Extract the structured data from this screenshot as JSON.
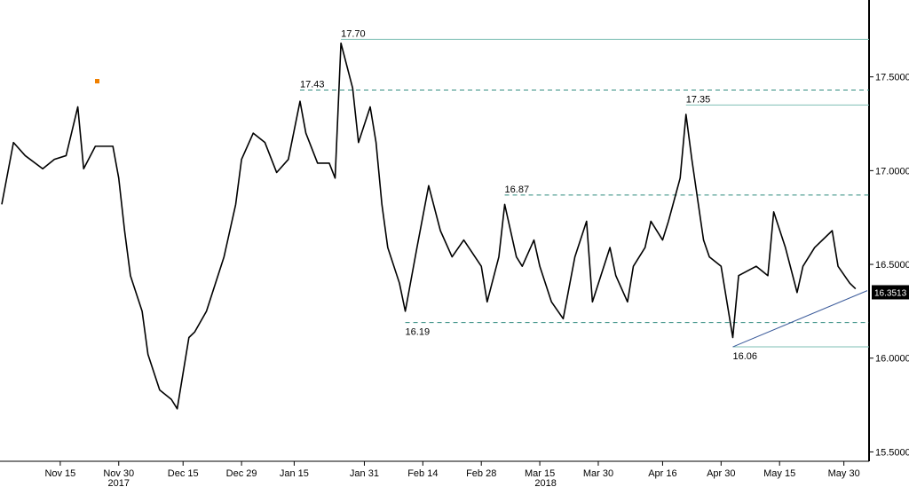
{
  "chart_data": {
    "type": "line",
    "x": [
      0,
      2,
      4,
      7,
      9,
      11,
      13,
      14,
      16,
      19,
      20,
      21,
      22,
      24,
      25,
      27,
      29,
      30,
      32,
      33,
      35,
      38,
      40,
      41,
      43,
      45,
      47,
      49,
      51,
      52,
      54,
      56,
      57,
      58,
      60,
      61,
      63,
      64,
      65,
      66,
      68,
      69,
      71,
      73,
      75,
      77,
      79,
      82,
      83,
      85,
      86,
      88,
      89,
      91,
      92,
      94,
      96,
      98,
      100,
      101,
      104,
      105,
      107,
      108,
      110,
      111,
      113,
      114,
      116,
      117,
      118,
      120,
      121,
      123,
      124,
      125,
      126,
      129,
      131,
      132,
      134,
      136,
      137,
      139,
      142,
      143,
      145,
      146
    ],
    "series": [
      {
        "color": "#000000",
        "values": [
          16.82,
          17.15,
          17.08,
          17.01,
          17.06,
          17.08,
          17.34,
          17.01,
          17.13,
          17.13,
          16.96,
          16.68,
          16.44,
          16.25,
          16.02,
          15.83,
          15.78,
          15.73,
          16.11,
          16.14,
          16.25,
          16.54,
          16.82,
          17.06,
          17.2,
          17.15,
          16.99,
          17.06,
          17.37,
          17.2,
          17.04,
          17.04,
          16.96,
          17.68,
          17.44,
          17.15,
          17.34,
          17.15,
          16.82,
          16.59,
          16.4,
          16.25,
          16.59,
          16.92,
          16.68,
          16.54,
          16.63,
          16.49,
          16.3,
          16.54,
          16.82,
          16.54,
          16.49,
          16.63,
          16.49,
          16.3,
          16.21,
          16.54,
          16.73,
          16.3,
          16.59,
          16.44,
          16.3,
          16.49,
          16.59,
          16.73,
          16.63,
          16.73,
          16.96,
          17.3,
          17.06,
          16.63,
          16.54,
          16.49,
          16.3,
          16.11,
          16.44,
          16.49,
          16.44,
          16.78,
          16.59,
          16.35,
          16.49,
          16.59,
          16.68,
          16.49,
          16.4,
          16.37
        ]
      }
    ],
    "xlim": [
      0,
      148
    ],
    "ylim": [
      15.45,
      17.91
    ],
    "yticks": [
      {
        "value": 15.5,
        "label": "15.5000"
      },
      {
        "value": 16,
        "label": "16.0000"
      },
      {
        "value": 16.5,
        "label": "16.5000"
      },
      {
        "value": 17,
        "label": "17.0000"
      },
      {
        "value": 17.5,
        "label": "17.5000"
      }
    ],
    "xticks": [
      {
        "value": 10,
        "label": "Nov 15"
      },
      {
        "value": 20,
        "label": "Nov 30"
      },
      {
        "value": 31,
        "label": "Dec 15"
      },
      {
        "value": 41,
        "label": "Dec 29"
      },
      {
        "value": 50,
        "label": "Jan 15"
      },
      {
        "value": 62,
        "label": "Jan 31"
      },
      {
        "value": 72,
        "label": "Feb 14"
      },
      {
        "value": 82,
        "label": "Feb 28"
      },
      {
        "value": 92,
        "label": "Mar 15"
      },
      {
        "value": 102,
        "label": "Mar 30"
      },
      {
        "value": 113,
        "label": "Apr 16"
      },
      {
        "value": 123,
        "label": "Apr 30"
      },
      {
        "value": 133,
        "label": "May 15"
      },
      {
        "value": 144,
        "label": "May 30"
      }
    ],
    "year_labels": [
      {
        "value": 20,
        "label": "2017"
      },
      {
        "value": 93,
        "label": "2018"
      }
    ],
    "levels": [
      {
        "value": 17.7,
        "label": "17.70",
        "start": 58,
        "style": "solid",
        "label_side": "above"
      },
      {
        "value": 17.43,
        "label": "17.43",
        "start": 51,
        "style": "dashed",
        "label_side": "above"
      },
      {
        "value": 17.35,
        "label": "17.35",
        "start": 117,
        "style": "solid",
        "label_side": "above"
      },
      {
        "value": 16.87,
        "label": "16.87",
        "start": 86,
        "style": "dashed",
        "label_side": "above"
      },
      {
        "value": 16.19,
        "label": "16.19",
        "start": 69,
        "style": "dashed",
        "label_side": "below"
      },
      {
        "value": 16.06,
        "label": "16.06",
        "start": 125,
        "style": "solid",
        "label_side": "below"
      }
    ],
    "trend_line": {
      "x": [
        125,
        148
      ],
      "values": [
        16.06,
        16.36
      ]
    },
    "last_price": 16.3513
  }
}
